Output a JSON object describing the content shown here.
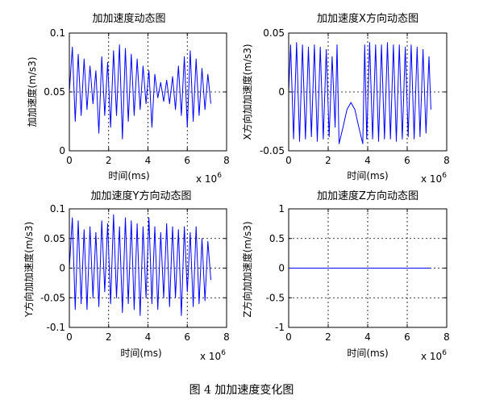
{
  "figure": {
    "caption": "图 4  加加速度变化图",
    "colors": {
      "series": "#0000ff",
      "axes": "#000000",
      "grid": "#000000",
      "background": "#ffffff"
    }
  },
  "chart_data": [
    {
      "type": "line",
      "title": "加加速度动态图",
      "xlabel": "时间(ms)",
      "ylabel": "加加速度(m/s3)",
      "x_exponent_label": "x 10",
      "x_exponent": "6",
      "xlim": [
        0,
        8
      ],
      "ylim": [
        0,
        0.1
      ],
      "xticks": [
        "0",
        "2",
        "4",
        "6",
        "8"
      ],
      "yticks": [
        "0",
        "0.05",
        "0.1"
      ],
      "grid": true,
      "series": [
        {
          "x": [
            0,
            0.15,
            0.3,
            0.45,
            0.6,
            0.75,
            0.9,
            1.05,
            1.2,
            1.35,
            1.5,
            1.65,
            1.8,
            1.95,
            2.1,
            2.25,
            2.4,
            2.55,
            2.7,
            2.85,
            3.0,
            3.15,
            3.3,
            3.45,
            3.6,
            3.75,
            3.9,
            4.05,
            4.2,
            4.35,
            4.5,
            4.65,
            4.8,
            4.95,
            5.1,
            5.25,
            5.4,
            5.55,
            5.7,
            5.85,
            6.0,
            6.15,
            6.3,
            6.45,
            6.6,
            6.75,
            6.9,
            7.05,
            7.2
          ],
          "y": [
            0.05,
            0.088,
            0.025,
            0.082,
            0.03,
            0.078,
            0.035,
            0.072,
            0.04,
            0.068,
            0.015,
            0.08,
            0.03,
            0.075,
            0.02,
            0.085,
            0.03,
            0.09,
            0.01,
            0.087,
            0.025,
            0.082,
            0.03,
            0.078,
            0.035,
            0.072,
            0.04,
            0.068,
            0.02,
            0.065,
            0.045,
            0.058,
            0.042,
            0.06,
            0.04,
            0.063,
            0.035,
            0.072,
            0.03,
            0.08,
            0.02,
            0.085,
            0.025,
            0.078,
            0.03,
            0.07,
            0.035,
            0.065,
            0.04
          ]
        }
      ]
    },
    {
      "type": "line",
      "title": "加加速度X方向动态图",
      "xlabel": "时间(ms)",
      "ylabel": "X方向加加速度(m/s3)",
      "x_exponent_label": "x 10",
      "x_exponent": "6",
      "xlim": [
        0,
        8
      ],
      "ylim": [
        -0.05,
        0.05
      ],
      "xticks": [
        "0",
        "2",
        "4",
        "6",
        "8"
      ],
      "yticks": [
        "-0.05",
        "0",
        "0.05"
      ],
      "grid": true,
      "series": [
        {
          "x": [
            0,
            0.1,
            0.25,
            0.4,
            0.55,
            0.7,
            0.85,
            1.0,
            1.15,
            1.3,
            1.45,
            1.6,
            1.75,
            1.9,
            2.05,
            2.2,
            2.35,
            2.45,
            2.55,
            2.75,
            2.95,
            3.15,
            3.35,
            3.55,
            3.75,
            3.85,
            3.95,
            4.1,
            4.25,
            4.4,
            4.55,
            4.7,
            4.85,
            5.0,
            5.15,
            5.3,
            5.45,
            5.6,
            5.75,
            5.9,
            6.05,
            6.2,
            6.35,
            6.5,
            6.65,
            6.8,
            6.95,
            7.1,
            7.2
          ],
          "y": [
            0,
            0.04,
            -0.04,
            0.042,
            -0.042,
            0.04,
            -0.04,
            0.038,
            -0.038,
            0.04,
            -0.042,
            0.038,
            -0.04,
            0.036,
            -0.038,
            0.03,
            -0.03,
            0.04,
            -0.044,
            -0.03,
            -0.015,
            -0.009,
            -0.015,
            -0.03,
            -0.044,
            0.04,
            -0.04,
            0.042,
            -0.04,
            0.04,
            -0.042,
            0.04,
            -0.04,
            0.042,
            -0.04,
            0.04,
            -0.042,
            0.04,
            -0.04,
            0.038,
            -0.038,
            0.04,
            -0.04,
            0.038,
            -0.038,
            0.036,
            -0.035,
            0.03,
            -0.015
          ]
        }
      ]
    },
    {
      "type": "line",
      "title": "加加速度Y方向动态图",
      "xlabel": "时间(ms)",
      "ylabel": "Y方向加加速度(m/s3)",
      "x_exponent_label": "x 10",
      "x_exponent": "6",
      "xlim": [
        0,
        8
      ],
      "ylim": [
        -0.1,
        0.1
      ],
      "xticks": [
        "0",
        "2",
        "4",
        "6",
        "8"
      ],
      "yticks": [
        "-0.1",
        "-0.05",
        "0",
        "0.05",
        "0.1"
      ],
      "grid": true,
      "series": [
        {
          "x": [
            0,
            0.15,
            0.3,
            0.45,
            0.6,
            0.75,
            0.9,
            1.05,
            1.2,
            1.35,
            1.5,
            1.65,
            1.8,
            1.95,
            2.1,
            2.25,
            2.4,
            2.55,
            2.7,
            2.85,
            3.0,
            3.15,
            3.3,
            3.45,
            3.6,
            3.75,
            3.9,
            4.05,
            4.2,
            4.35,
            4.5,
            4.65,
            4.8,
            4.95,
            5.1,
            5.25,
            5.4,
            5.55,
            5.7,
            5.85,
            6.0,
            6.15,
            6.3,
            6.45,
            6.6,
            6.75,
            6.9,
            7.05,
            7.2
          ],
          "y": [
            0,
            0.085,
            -0.07,
            0.08,
            -0.06,
            0.065,
            -0.07,
            0.07,
            -0.05,
            0.06,
            -0.065,
            0.08,
            -0.04,
            0.075,
            -0.06,
            0.09,
            -0.05,
            0.07,
            -0.075,
            0.085,
            -0.06,
            0.08,
            -0.07,
            0.075,
            -0.08,
            0.07,
            -0.05,
            0.085,
            -0.06,
            0.07,
            -0.07,
            0.06,
            -0.05,
            0.075,
            -0.065,
            0.07,
            -0.05,
            0.065,
            -0.08,
            0.07,
            -0.04,
            0.06,
            -0.065,
            0.07,
            -0.06,
            0.05,
            -0.055,
            0.045,
            -0.02
          ]
        }
      ]
    },
    {
      "type": "line",
      "title": "加加速度Z方向动态图",
      "xlabel": "时间(ms)",
      "ylabel": "Z方向加加速度(m/s3)",
      "x_exponent_label": "x 10",
      "x_exponent": "6",
      "xlim": [
        0,
        8
      ],
      "ylim": [
        -1,
        1
      ],
      "xticks": [
        "0",
        "2",
        "4",
        "6",
        "8"
      ],
      "yticks": [
        "-1",
        "-0.5",
        "0",
        "0.5",
        "1"
      ],
      "grid": true,
      "series": [
        {
          "x": [
            0,
            7.2
          ],
          "y": [
            0,
            0
          ]
        }
      ]
    }
  ]
}
